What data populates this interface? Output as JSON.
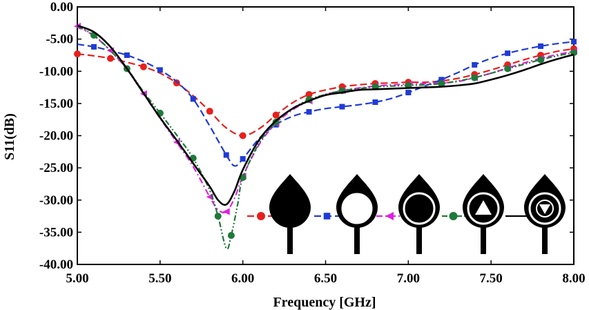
{
  "chart_data": {
    "type": "line",
    "xlabel": "Frequency [GHz]",
    "ylabel": "S11(dB)",
    "xlim": [
      5.0,
      8.0
    ],
    "ylim": [
      -40.0,
      0.0
    ],
    "x_ticks": [
      5.0,
      5.5,
      6.0,
      6.5,
      7.0,
      7.5,
      8.0
    ],
    "x_tick_labels": [
      "5.00",
      "5.50",
      "6.00",
      "6.50",
      "7.00",
      "7.50",
      "8.00"
    ],
    "y_ticks": [
      0,
      -5,
      -10,
      -15,
      -20,
      -25,
      -30,
      -35,
      -40
    ],
    "y_tick_labels": [
      "0.00",
      "-5.00",
      "-10.00",
      "-15.00",
      "-20.00",
      "-25.00",
      "-30.00",
      "-35.00",
      "-40.00"
    ],
    "grid": false,
    "legend_placement": "bottom-right",
    "legend_style": "antenna shape icons",
    "series": [
      {
        "color": "#e8201c",
        "dash": "dashed",
        "marker": "circle",
        "icon": "solid-teardrop-antenna",
        "x": [
          5.0,
          5.1,
          5.2,
          5.3,
          5.4,
          5.5,
          5.6,
          5.7,
          5.8,
          5.9,
          6.0,
          6.1,
          6.2,
          6.3,
          6.4,
          6.5,
          6.6,
          6.7,
          6.8,
          6.9,
          7.0,
          7.1,
          7.2,
          7.3,
          7.4,
          7.5,
          7.6,
          7.7,
          7.8,
          7.9,
          8.0
        ],
        "y": [
          -7.3,
          -7.6,
          -8.0,
          -8.6,
          -9.3,
          -10.3,
          -11.8,
          -13.8,
          -16.2,
          -18.8,
          -20.0,
          -18.9,
          -16.8,
          -14.9,
          -13.6,
          -12.9,
          -12.4,
          -12.1,
          -11.9,
          -11.8,
          -11.7,
          -11.7,
          -11.5,
          -11.1,
          -10.5,
          -9.8,
          -9.0,
          -8.2,
          -7.5,
          -6.9,
          -6.5
        ]
      },
      {
        "color": "#1f3bd6",
        "dash": "dashed",
        "marker": "square",
        "icon": "teardrop-antenna-with-circular-slot",
        "x": [
          5.0,
          5.1,
          5.2,
          5.3,
          5.4,
          5.5,
          5.6,
          5.7,
          5.8,
          5.9,
          5.95,
          6.0,
          6.1,
          6.2,
          6.3,
          6.4,
          6.5,
          6.6,
          6.7,
          6.8,
          6.9,
          7.0,
          7.1,
          7.2,
          7.3,
          7.4,
          7.5,
          7.6,
          7.7,
          7.8,
          7.9,
          8.0
        ],
        "y": [
          -5.8,
          -6.2,
          -6.8,
          -7.5,
          -8.5,
          -9.8,
          -11.6,
          -14.3,
          -18.5,
          -23.0,
          -24.7,
          -23.6,
          -20.4,
          -18.3,
          -17.0,
          -16.3,
          -15.8,
          -15.5,
          -15.2,
          -14.8,
          -14.2,
          -13.3,
          -12.3,
          -11.3,
          -10.2,
          -9.0,
          -8.0,
          -7.2,
          -6.6,
          -6.1,
          -5.7,
          -5.4
        ]
      },
      {
        "color": "#e020e0",
        "dash": "dash-dot",
        "marker": "triangle-left",
        "icon": "teardrop-antenna-with-filled-ring",
        "x": [
          5.0,
          5.1,
          5.2,
          5.3,
          5.4,
          5.5,
          5.6,
          5.7,
          5.8,
          5.85,
          5.9,
          5.95,
          6.0,
          6.1,
          6.2,
          6.3,
          6.4,
          6.5,
          6.6,
          6.7,
          6.8,
          6.9,
          7.0,
          7.1,
          7.2,
          7.3,
          7.4,
          7.5,
          7.6,
          7.7,
          7.8,
          7.9,
          8.0
        ],
        "y": [
          -3.0,
          -4.5,
          -6.8,
          -9.7,
          -13.5,
          -17.3,
          -21.0,
          -24.8,
          -29.5,
          -31.5,
          -31.8,
          -29.7,
          -26.3,
          -21.3,
          -18.1,
          -16.0,
          -14.6,
          -13.6,
          -13.0,
          -12.6,
          -12.3,
          -12.1,
          -12.0,
          -11.9,
          -11.8,
          -11.6,
          -11.0,
          -10.3,
          -9.5,
          -8.7,
          -8.0,
          -7.4,
          -6.9
        ]
      },
      {
        "color": "#1e7a3a",
        "dash": "dash-dot-dot",
        "marker": "circle",
        "icon": "teardrop-antenna-with-triangle-slot",
        "x": [
          5.0,
          5.1,
          5.2,
          5.3,
          5.4,
          5.5,
          5.6,
          5.7,
          5.8,
          5.85,
          5.9,
          5.93,
          5.97,
          6.0,
          6.1,
          6.2,
          6.3,
          6.4,
          6.5,
          6.6,
          6.7,
          6.8,
          6.9,
          7.0,
          7.1,
          7.2,
          7.3,
          7.4,
          7.5,
          7.6,
          7.7,
          7.8,
          7.9,
          8.0
        ],
        "y": [
          -3.0,
          -4.4,
          -6.8,
          -9.6,
          -13.2,
          -16.5,
          -19.9,
          -23.5,
          -28.5,
          -32.5,
          -37.5,
          -35.5,
          -30.5,
          -26.5,
          -21.1,
          -17.9,
          -15.8,
          -14.4,
          -13.6,
          -13.0,
          -12.7,
          -12.4,
          -12.3,
          -12.2,
          -12.1,
          -11.9,
          -11.5,
          -11.0,
          -10.3,
          -9.6,
          -8.9,
          -8.2,
          -7.6,
          -7.1
        ]
      },
      {
        "color": "#000000",
        "dash": "solid",
        "marker": "none",
        "icon": "teardrop-antenna-with-triangle-in-ring",
        "x": [
          5.0,
          5.1,
          5.2,
          5.3,
          5.4,
          5.5,
          5.6,
          5.7,
          5.8,
          5.85,
          5.9,
          5.95,
          6.0,
          6.1,
          6.2,
          6.3,
          6.4,
          6.5,
          6.6,
          6.7,
          6.8,
          6.9,
          7.0,
          7.1,
          7.2,
          7.3,
          7.4,
          7.5,
          7.6,
          7.7,
          7.8,
          7.9,
          8.0
        ],
        "y": [
          -2.9,
          -3.9,
          -6.2,
          -9.6,
          -13.4,
          -17.2,
          -20.7,
          -24.3,
          -27.9,
          -30.0,
          -30.7,
          -28.6,
          -25.3,
          -20.6,
          -17.7,
          -15.8,
          -14.6,
          -13.7,
          -13.3,
          -12.9,
          -12.8,
          -12.7,
          -12.6,
          -12.5,
          -12.4,
          -12.2,
          -11.9,
          -11.3,
          -10.6,
          -9.8,
          -8.9,
          -8.1,
          -7.4
        ]
      }
    ]
  }
}
